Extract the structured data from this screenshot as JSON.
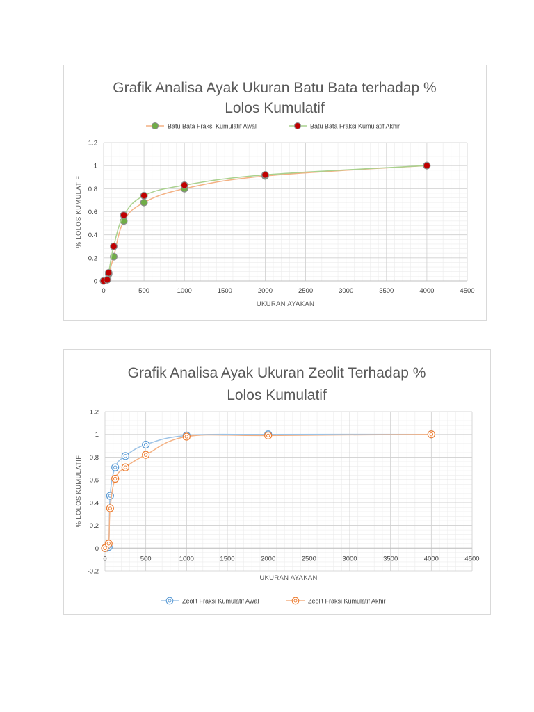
{
  "chart_data": [
    {
      "type": "scatter",
      "title_lines": [
        "Grafik Analisa Ayak Ukuran Batu Bata terhadap %",
        "Lolos Kumulatif"
      ],
      "xlabel": "UKURAN AYAKAN",
      "ylabel": "%  LOLOS KUMULATIF",
      "xlim": [
        0,
        4500
      ],
      "ylim": [
        0,
        1.2
      ],
      "xticks": [
        0,
        500,
        1000,
        1500,
        2000,
        2500,
        3000,
        3500,
        4000,
        4500
      ],
      "yticks": [
        0,
        0.2,
        0.4,
        0.6,
        0.8,
        1,
        1.2
      ],
      "ytick_labels": [
        "0",
        "0.2",
        "0.4",
        "0.6",
        "0.8",
        "1",
        "1.2"
      ],
      "grid": true,
      "legend": "top",
      "series": [
        {
          "name": "Batu Bata  Fraksi Kumulatif Awal",
          "line_color": "#f4b183",
          "marker_color": "#70ad47",
          "x": [
            0,
            45,
            63,
            125,
            250,
            500,
            1000,
            2000,
            4000
          ],
          "y": [
            0,
            0.01,
            0.06,
            0.21,
            0.52,
            0.68,
            0.8,
            0.91,
            1.0
          ]
        },
        {
          "name": "Batu Bata  Fraksi Kumulatif Akhir",
          "line_color": "#a9d18e",
          "marker_color": "#c00000",
          "x": [
            0,
            45,
            63,
            125,
            250,
            500,
            1000,
            2000,
            4000
          ],
          "y": [
            0,
            0.01,
            0.07,
            0.3,
            0.57,
            0.74,
            0.83,
            0.92,
            1.0
          ]
        }
      ]
    },
    {
      "type": "scatter",
      "title_lines": [
        "Grafik Analisa Ayak Ukuran Zeolit Terhadap %",
        "Lolos Kumulatif"
      ],
      "xlabel": "UKURAN AYAKAN",
      "ylabel": "%  LOLOS KUMULATIF",
      "xlim": [
        0,
        4500
      ],
      "ylim": [
        -0.2,
        1.2
      ],
      "xticks": [
        0,
        500,
        1000,
        1500,
        2000,
        2500,
        3000,
        3500,
        4000,
        4500
      ],
      "yticks": [
        -0.2,
        0,
        0.2,
        0.4,
        0.6,
        0.8,
        1,
        1.2
      ],
      "ytick_labels": [
        "-0.2",
        "0",
        "0.2",
        "0.4",
        "0.6",
        "0.8",
        "1",
        "1.2"
      ],
      "grid": true,
      "legend": "bottom",
      "series": [
        {
          "name": "Zeolit  Fraksi Kumulatif Awal",
          "line_color": "#9dc3e6",
          "marker_color": "#5b9bd5",
          "x": [
            0,
            45,
            63,
            125,
            250,
            500,
            1000,
            2000,
            4000
          ],
          "y": [
            0,
            0.01,
            0.46,
            0.71,
            0.81,
            0.91,
            0.99,
            1.0,
            1.0
          ]
        },
        {
          "name": "Zeolit  Fraksi Kumulatif Akhir",
          "line_color": "#f4b183",
          "marker_color": "#ed7d31",
          "x": [
            0,
            45,
            63,
            125,
            250,
            500,
            1000,
            2000,
            4000
          ],
          "y": [
            0,
            0.04,
            0.35,
            0.61,
            0.71,
            0.82,
            0.98,
            0.99,
            1.0
          ]
        }
      ]
    }
  ]
}
